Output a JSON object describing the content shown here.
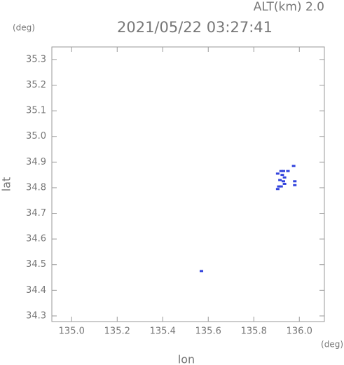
{
  "chart_data": {
    "type": "scatter",
    "title": "2021/05/22 03:27:41",
    "altitude_label": "ALT(km) 2.0",
    "y_unit": "(deg)",
    "x_unit": "(deg)",
    "xlabel": "lon",
    "ylabel": "lat",
    "xlim": [
      134.913,
      136.11
    ],
    "ylim": [
      34.278,
      35.349
    ],
    "xticks": [
      {
        "value": 135.0,
        "label": "135.0"
      },
      135.2,
      135.4,
      135.6,
      135.8,
      {
        "value": 136.0,
        "label": "136.0"
      }
    ],
    "yticks": [
      34.3,
      34.4,
      34.5,
      34.6,
      34.7,
      34.8,
      34.9,
      {
        "value": 35.0,
        "label": "35.0"
      },
      35.1,
      35.2,
      35.3
    ],
    "series": [
      {
        "color": "#3344dd",
        "x": [
          135.57,
          135.92,
          135.93,
          135.95,
          135.905,
          135.925,
          135.935,
          135.915,
          135.93,
          135.975,
          135.98,
          135.98,
          135.91,
          135.92,
          135.905,
          135.935
        ],
        "values": [
          34.475,
          34.865,
          34.865,
          34.865,
          34.855,
          34.85,
          34.84,
          34.83,
          34.825,
          34.885,
          34.825,
          34.81,
          34.805,
          34.805,
          34.795,
          34.815
        ]
      }
    ]
  }
}
